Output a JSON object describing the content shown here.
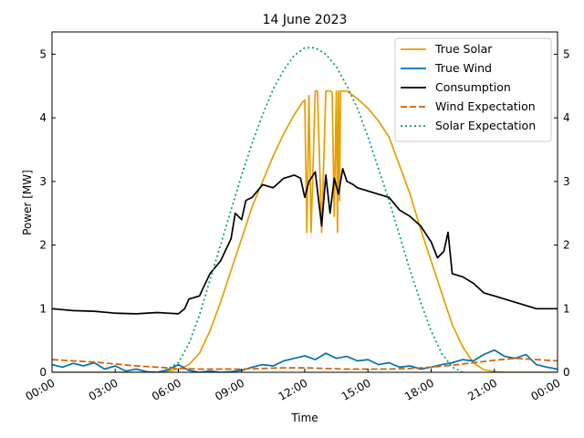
{
  "chart_data": {
    "type": "line",
    "title": "14 June 2023",
    "xlabel": "Time",
    "ylabel": "Power [MW]",
    "xlim": [
      0,
      24
    ],
    "ylim": [
      0,
      5.35
    ],
    "x_ticks": [
      {
        "value": 0,
        "label": "00:00"
      },
      {
        "value": 3,
        "label": "03:00"
      },
      {
        "value": 6,
        "label": "06:00"
      },
      {
        "value": 9,
        "label": "09:00"
      },
      {
        "value": 12,
        "label": "12:00"
      },
      {
        "value": 15,
        "label": "15:00"
      },
      {
        "value": 18,
        "label": "18:00"
      },
      {
        "value": 21,
        "label": "21:00"
      },
      {
        "value": 24,
        "label": "00:00"
      }
    ],
    "y_ticks": [
      {
        "value": 0,
        "label": "0"
      },
      {
        "value": 1,
        "label": "1"
      },
      {
        "value": 2,
        "label": "2"
      },
      {
        "value": 3,
        "label": "3"
      },
      {
        "value": 4,
        "label": "4"
      },
      {
        "value": 5,
        "label": "5"
      }
    ],
    "grid": false,
    "legend_position": "top-right",
    "series": [
      {
        "name": "True Solar",
        "color": "#E69F00",
        "dash": "solid",
        "x": [
          0,
          5,
          5.5,
          6,
          6.5,
          7,
          7.5,
          8,
          8.5,
          9,
          9.5,
          10,
          10.5,
          11,
          11.5,
          11.9,
          12,
          12.1,
          12.2,
          12.3,
          12.5,
          12.6,
          12.8,
          13,
          13.1,
          13.2,
          13.3,
          13.4,
          13.5,
          13.55,
          13.6,
          13.65,
          13.7,
          13.8,
          13.9,
          14,
          14.5,
          15,
          15.5,
          16,
          16.5,
          17,
          17.5,
          18,
          18.5,
          19,
          19.5,
          20,
          20.5,
          21,
          21.5,
          22,
          24
        ],
        "y": [
          0,
          0,
          0.02,
          0.05,
          0.12,
          0.3,
          0.65,
          1.1,
          1.6,
          2.1,
          2.6,
          3.0,
          3.4,
          3.75,
          4.05,
          4.25,
          4.28,
          2.2,
          4.35,
          2.2,
          4.42,
          4.42,
          2.2,
          4.42,
          4.42,
          4.42,
          4.4,
          2.45,
          4.42,
          2.2,
          4.42,
          2.7,
          4.42,
          4.42,
          4.42,
          4.42,
          4.3,
          4.15,
          3.95,
          3.7,
          3.25,
          2.8,
          2.25,
          1.75,
          1.25,
          0.75,
          0.4,
          0.15,
          0.04,
          0.01,
          0,
          0,
          0
        ]
      },
      {
        "name": "True Wind",
        "color": "#0072B2",
        "dash": "solid",
        "x": [
          0,
          0.5,
          1,
          1.5,
          2,
          2.5,
          3,
          3.5,
          4,
          4.5,
          5,
          5.5,
          6,
          6.5,
          7,
          7.5,
          8,
          8.5,
          9,
          9.5,
          10,
          10.5,
          11,
          11.5,
          12,
          12.5,
          13,
          13.5,
          14,
          14.5,
          15,
          15.5,
          16,
          16.5,
          17,
          17.5,
          18,
          18.5,
          19,
          19.5,
          20,
          20.5,
          21,
          21.5,
          22,
          22.5,
          23,
          23.5,
          24
        ],
        "y": [
          0.12,
          0.08,
          0.14,
          0.1,
          0.15,
          0.05,
          0.1,
          0.02,
          0.05,
          0.01,
          0.0,
          0.04,
          0.12,
          0.03,
          0.0,
          0.02,
          0.0,
          0.01,
          0.03,
          0.08,
          0.12,
          0.1,
          0.18,
          0.22,
          0.26,
          0.2,
          0.3,
          0.22,
          0.25,
          0.18,
          0.2,
          0.12,
          0.15,
          0.08,
          0.1,
          0.05,
          0.08,
          0.12,
          0.15,
          0.2,
          0.18,
          0.28,
          0.35,
          0.25,
          0.22,
          0.28,
          0.12,
          0.08,
          0.05
        ]
      },
      {
        "name": "Consumption",
        "color": "#000000",
        "dash": "solid",
        "x": [
          0,
          1,
          2,
          3,
          4,
          5,
          5.5,
          6,
          6.3,
          6.5,
          7,
          7.5,
          8,
          8.5,
          8.7,
          9,
          9.2,
          9.5,
          10,
          10.5,
          11,
          11.5,
          11.8,
          12,
          12.2,
          12.5,
          12.8,
          13,
          13.2,
          13.4,
          13.6,
          13.8,
          14,
          14.3,
          14.5,
          15,
          15.5,
          16,
          16.5,
          17,
          17.5,
          18,
          18.3,
          18.6,
          18.8,
          19,
          19.5,
          20,
          20.5,
          21,
          21.5,
          22,
          22.5,
          23,
          23.5,
          24
        ],
        "y": [
          1.0,
          0.97,
          0.96,
          0.93,
          0.92,
          0.94,
          0.93,
          0.92,
          1.0,
          1.15,
          1.2,
          1.55,
          1.75,
          2.1,
          2.5,
          2.4,
          2.7,
          2.75,
          2.95,
          2.9,
          3.05,
          3.1,
          3.05,
          2.75,
          3.0,
          3.15,
          2.3,
          3.1,
          2.5,
          3.05,
          2.8,
          3.2,
          3.0,
          2.95,
          2.9,
          2.85,
          2.8,
          2.75,
          2.55,
          2.45,
          2.3,
          2.05,
          1.8,
          1.9,
          2.2,
          1.55,
          1.5,
          1.4,
          1.25,
          1.2,
          1.15,
          1.1,
          1.05,
          1.0,
          1.0,
          1.0
        ]
      },
      {
        "name": "Wind Expectation",
        "color": "#D55E00",
        "dash": "dashed",
        "x": [
          0,
          1,
          2,
          3,
          4,
          5,
          6,
          7,
          8,
          9,
          10,
          11,
          12,
          13,
          14,
          15,
          16,
          17,
          18,
          19,
          20,
          21,
          22,
          23,
          24
        ],
        "y": [
          0.2,
          0.18,
          0.16,
          0.13,
          0.1,
          0.08,
          0.06,
          0.05,
          0.05,
          0.05,
          0.06,
          0.07,
          0.07,
          0.06,
          0.05,
          0.05,
          0.05,
          0.06,
          0.08,
          0.11,
          0.15,
          0.19,
          0.22,
          0.2,
          0.18
        ]
      },
      {
        "name": "Solar Expectation",
        "color": "#009E73",
        "dash": "dotted",
        "x": [
          5.2,
          6,
          6.5,
          7,
          7.5,
          8,
          8.5,
          9,
          9.5,
          10,
          10.5,
          11,
          11.5,
          12,
          12.5,
          13,
          13.5,
          14,
          14.5,
          15,
          15.5,
          16,
          16.5,
          17,
          17.5,
          18,
          18.5,
          19,
          19.5
        ],
        "y": [
          0,
          0.15,
          0.45,
          0.9,
          1.45,
          2.0,
          2.55,
          3.1,
          3.6,
          4.05,
          4.45,
          4.75,
          4.98,
          5.1,
          5.1,
          5.0,
          4.8,
          4.5,
          4.15,
          3.7,
          3.2,
          2.7,
          2.15,
          1.6,
          1.1,
          0.65,
          0.3,
          0.08,
          0
        ]
      }
    ]
  }
}
